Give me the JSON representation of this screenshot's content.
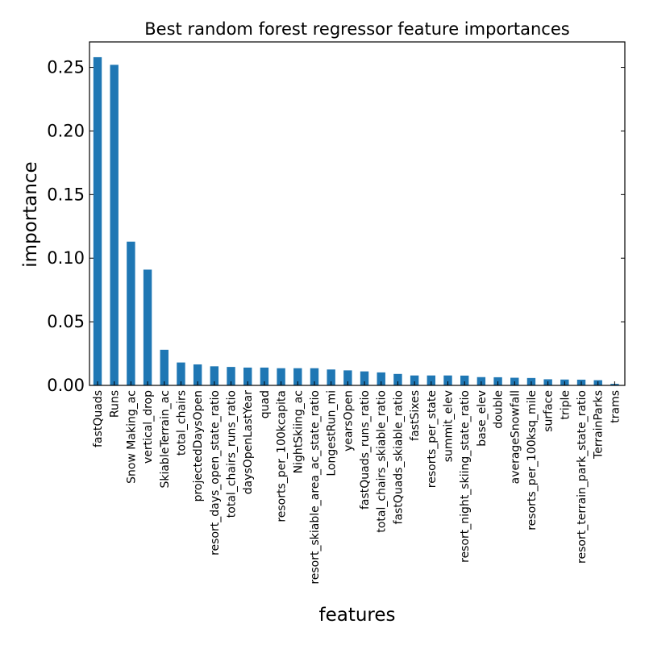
{
  "chart_data": {
    "type": "bar",
    "title": "Best random forest regressor feature importances",
    "xlabel": "features",
    "ylabel": "importance",
    "ylim": [
      0,
      0.27
    ],
    "yticks": [
      "0.00",
      "0.05",
      "0.10",
      "0.15",
      "0.20",
      "0.25"
    ],
    "ytick_values": [
      0,
      0.05,
      0.1,
      0.15,
      0.2,
      0.25
    ],
    "bar_color": "#1f77b4",
    "grid": false,
    "categories": [
      "fastQuads",
      "Runs",
      "Snow Making_ac",
      "vertical_drop",
      "SkiableTerrain_ac",
      "total_chairs",
      "projectedDaysOpen",
      "resort_days_open_state_ratio",
      "total_chairs_runs_ratio",
      "daysOpenLastYear",
      "quad",
      "resorts_per_100kcapita",
      "NightSkiing_ac",
      "resort_skiable_area_ac_state_ratio",
      "LongestRun_mi",
      "yearsOpen",
      "fastQuads_runs_ratio",
      "total_chairs_skiable_ratio",
      "fastQuads_skiable_ratio",
      "fastSixes",
      "resorts_per_state",
      "summit_elev",
      "resort_night_skiing_state_ratio",
      "base_elev",
      "double",
      "averageSnowfall",
      "resorts_per_100ksq_mile",
      "surface",
      "triple",
      "resort_terrain_park_state_ratio",
      "TerrainParks",
      "trams"
    ],
    "values": [
      0.258,
      0.252,
      0.113,
      0.091,
      0.028,
      0.018,
      0.0165,
      0.015,
      0.0145,
      0.014,
      0.014,
      0.0135,
      0.0135,
      0.0135,
      0.0125,
      0.0118,
      0.011,
      0.0102,
      0.009,
      0.0078,
      0.0078,
      0.0078,
      0.0077,
      0.0065,
      0.0064,
      0.006,
      0.0058,
      0.0048,
      0.0046,
      0.0045,
      0.0041,
      0.0012
    ]
  }
}
